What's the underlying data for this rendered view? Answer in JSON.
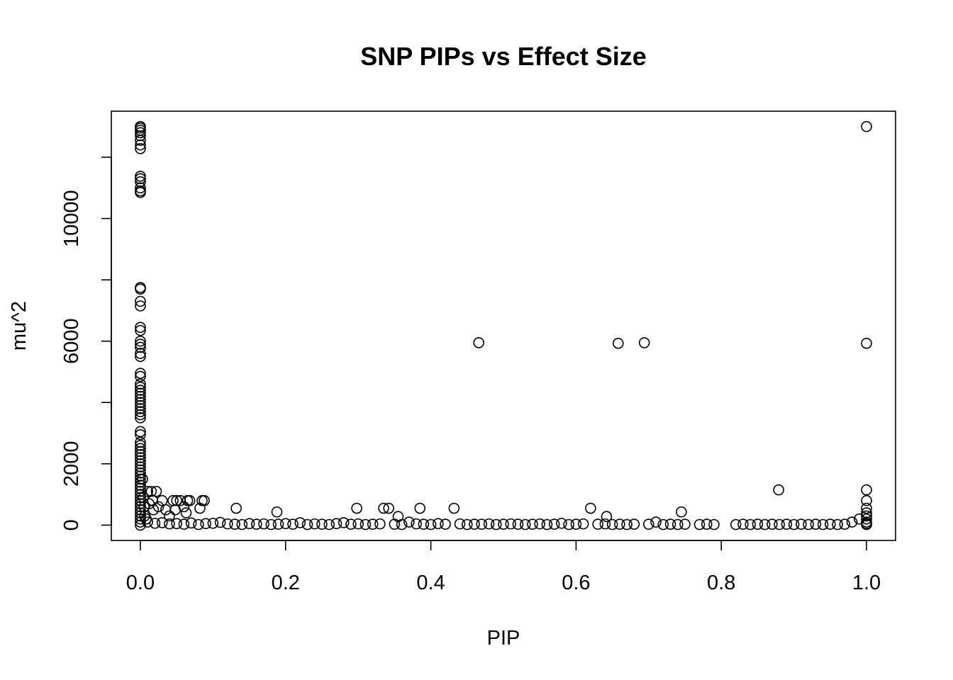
{
  "chart_data": {
    "type": "scatter",
    "title": "SNP PIPs vs Effect Size",
    "xlabel": "PIP",
    "ylabel": "mu^2",
    "xlim": [
      -0.04,
      1.04
    ],
    "ylim": [
      -500,
      13500
    ],
    "x_ticks": [
      0.0,
      0.2,
      0.4,
      0.6,
      0.8,
      1.0
    ],
    "x_tick_labels": [
      "0.0",
      "0.2",
      "0.4",
      "0.6",
      "0.8",
      "1.0"
    ],
    "y_ticks": [
      0,
      2000,
      4000,
      6000,
      8000,
      10000,
      12000
    ],
    "y_tick_labels": [
      "0",
      "2000",
      "",
      "6000",
      "",
      "10000",
      ""
    ],
    "grid": false,
    "legend": "none",
    "marker": "open-circle",
    "series": [
      {
        "points": [
          [
            0.0,
            13000
          ],
          [
            0.0,
            12950
          ],
          [
            0.0,
            12880
          ],
          [
            0.0,
            12800
          ],
          [
            0.0,
            12700
          ],
          [
            0.0,
            12550
          ],
          [
            0.0,
            12400
          ],
          [
            0.0,
            12280
          ],
          [
            0.0,
            11380
          ],
          [
            0.0,
            11300
          ],
          [
            0.0,
            11200
          ],
          [
            0.0,
            11000
          ],
          [
            0.0,
            10900
          ],
          [
            0.0,
            10850
          ],
          [
            0.0,
            7750
          ],
          [
            0.0,
            7700
          ],
          [
            0.0,
            7300
          ],
          [
            0.0,
            7150
          ],
          [
            0.0,
            6450
          ],
          [
            0.0,
            6350
          ],
          [
            0.0,
            6000
          ],
          [
            0.0,
            5900
          ],
          [
            0.0,
            5800
          ],
          [
            0.0,
            5600
          ],
          [
            0.0,
            5500
          ],
          [
            0.0,
            4950
          ],
          [
            0.0,
            4850
          ],
          [
            0.0,
            4600
          ],
          [
            0.0,
            4500
          ],
          [
            0.0,
            4400
          ],
          [
            0.0,
            4300
          ],
          [
            0.0,
            4200
          ],
          [
            0.0,
            4100
          ],
          [
            0.0,
            4000
          ],
          [
            0.0,
            3900
          ],
          [
            0.0,
            3800
          ],
          [
            0.0,
            3700
          ],
          [
            0.0,
            3600
          ],
          [
            0.0,
            3500
          ],
          [
            0.0,
            3050
          ],
          [
            0.0,
            2950
          ],
          [
            0.0,
            2700
          ],
          [
            0.0,
            2600
          ],
          [
            0.0,
            2500
          ],
          [
            0.0,
            2400
          ],
          [
            0.0,
            2300
          ],
          [
            0.0,
            2200
          ],
          [
            0.0,
            2100
          ],
          [
            0.0,
            2000
          ],
          [
            0.0,
            1900
          ],
          [
            0.0,
            1800
          ],
          [
            0.0,
            1700
          ],
          [
            0.0,
            1600
          ],
          [
            0.0,
            1500
          ],
          [
            0.0,
            1400
          ],
          [
            0.0,
            1300
          ],
          [
            0.0,
            1200
          ],
          [
            0.0,
            1100
          ],
          [
            0.0,
            1000
          ],
          [
            0.0,
            900
          ],
          [
            0.0,
            800
          ],
          [
            0.0,
            700
          ],
          [
            0.0,
            600
          ],
          [
            0.0,
            500
          ],
          [
            0.0,
            400
          ],
          [
            0.0,
            300
          ],
          [
            0.0,
            200
          ],
          [
            0.0,
            100
          ],
          [
            0.0,
            0
          ],
          [
            0.003,
            1500
          ],
          [
            0.004,
            900
          ],
          [
            0.005,
            600
          ],
          [
            0.006,
            300
          ],
          [
            0.008,
            200
          ],
          [
            0.01,
            1100
          ],
          [
            0.012,
            700
          ],
          [
            0.015,
            1100
          ],
          [
            0.017,
            800
          ],
          [
            0.018,
            500
          ],
          [
            0.022,
            1100
          ],
          [
            0.025,
            600
          ],
          [
            0.03,
            800
          ],
          [
            0.035,
            500
          ],
          [
            0.04,
            300
          ],
          [
            0.045,
            800
          ],
          [
            0.05,
            800
          ],
          [
            0.048,
            500
          ],
          [
            0.055,
            800
          ],
          [
            0.06,
            600
          ],
          [
            0.063,
            400
          ],
          [
            0.065,
            800
          ],
          [
            0.068,
            800
          ],
          [
            0.085,
            800
          ],
          [
            0.088,
            800
          ],
          [
            0.082,
            550
          ],
          [
            0.01,
            100
          ],
          [
            0.02,
            60
          ],
          [
            0.03,
            80
          ],
          [
            0.04,
            40
          ],
          [
            0.05,
            50
          ],
          [
            0.06,
            30
          ],
          [
            0.07,
            70
          ],
          [
            0.08,
            20
          ],
          [
            0.09,
            50
          ],
          [
            0.1,
            60
          ],
          [
            0.11,
            90
          ],
          [
            0.12,
            40
          ],
          [
            0.13,
            30
          ],
          [
            0.132,
            550
          ],
          [
            0.14,
            20
          ],
          [
            0.15,
            50
          ],
          [
            0.16,
            30
          ],
          [
            0.17,
            40
          ],
          [
            0.18,
            20
          ],
          [
            0.19,
            30
          ],
          [
            0.188,
            430
          ],
          [
            0.2,
            50
          ],
          [
            0.21,
            30
          ],
          [
            0.22,
            80
          ],
          [
            0.23,
            20
          ],
          [
            0.24,
            40
          ],
          [
            0.25,
            30
          ],
          [
            0.26,
            20
          ],
          [
            0.27,
            50
          ],
          [
            0.28,
            80
          ],
          [
            0.29,
            30
          ],
          [
            0.298,
            550
          ],
          [
            0.3,
            40
          ],
          [
            0.31,
            20
          ],
          [
            0.32,
            30
          ],
          [
            0.33,
            40
          ],
          [
            0.335,
            550
          ],
          [
            0.342,
            550
          ],
          [
            0.35,
            30
          ],
          [
            0.355,
            280
          ],
          [
            0.36,
            20
          ],
          [
            0.37,
            100
          ],
          [
            0.38,
            40
          ],
          [
            0.385,
            550
          ],
          [
            0.39,
            30
          ],
          [
            0.4,
            20
          ],
          [
            0.41,
            50
          ],
          [
            0.42,
            30
          ],
          [
            0.432,
            550
          ],
          [
            0.44,
            40
          ],
          [
            0.45,
            20
          ],
          [
            0.46,
            30
          ],
          [
            0.466,
            5950
          ],
          [
            0.47,
            30
          ],
          [
            0.48,
            40
          ],
          [
            0.49,
            20
          ],
          [
            0.5,
            30
          ],
          [
            0.51,
            40
          ],
          [
            0.52,
            30
          ],
          [
            0.53,
            20
          ],
          [
            0.54,
            30
          ],
          [
            0.55,
            40
          ],
          [
            0.56,
            20
          ],
          [
            0.57,
            30
          ],
          [
            0.58,
            60
          ],
          [
            0.59,
            20
          ],
          [
            0.6,
            30
          ],
          [
            0.61,
            40
          ],
          [
            0.62,
            550
          ],
          [
            0.63,
            30
          ],
          [
            0.64,
            40
          ],
          [
            0.642,
            280
          ],
          [
            0.65,
            20
          ],
          [
            0.658,
            5930
          ],
          [
            0.66,
            30
          ],
          [
            0.67,
            20
          ],
          [
            0.68,
            30
          ],
          [
            0.694,
            5950
          ],
          [
            0.7,
            30
          ],
          [
            0.71,
            100
          ],
          [
            0.72,
            20
          ],
          [
            0.73,
            30
          ],
          [
            0.74,
            20
          ],
          [
            0.745,
            430
          ],
          [
            0.75,
            30
          ],
          [
            0.77,
            20
          ],
          [
            0.78,
            30
          ],
          [
            0.79,
            20
          ],
          [
            0.82,
            20
          ],
          [
            0.83,
            30
          ],
          [
            0.84,
            20
          ],
          [
            0.85,
            30
          ],
          [
            0.86,
            20
          ],
          [
            0.87,
            30
          ],
          [
            0.879,
            1150
          ],
          [
            0.88,
            20
          ],
          [
            0.89,
            30
          ],
          [
            0.9,
            20
          ],
          [
            0.91,
            30
          ],
          [
            0.92,
            20
          ],
          [
            0.93,
            30
          ],
          [
            0.94,
            20
          ],
          [
            0.95,
            30
          ],
          [
            0.96,
            20
          ],
          [
            0.97,
            30
          ],
          [
            0.98,
            100
          ],
          [
            0.99,
            200
          ],
          [
            1.0,
            13000
          ],
          [
            1.0,
            5930
          ],
          [
            1.0,
            1150
          ],
          [
            1.0,
            800
          ],
          [
            1.0,
            550
          ],
          [
            1.0,
            400
          ],
          [
            1.0,
            300
          ],
          [
            1.0,
            200
          ],
          [
            1.0,
            100
          ],
          [
            1.0,
            50
          ],
          [
            1.0,
            20
          ]
        ]
      }
    ]
  }
}
